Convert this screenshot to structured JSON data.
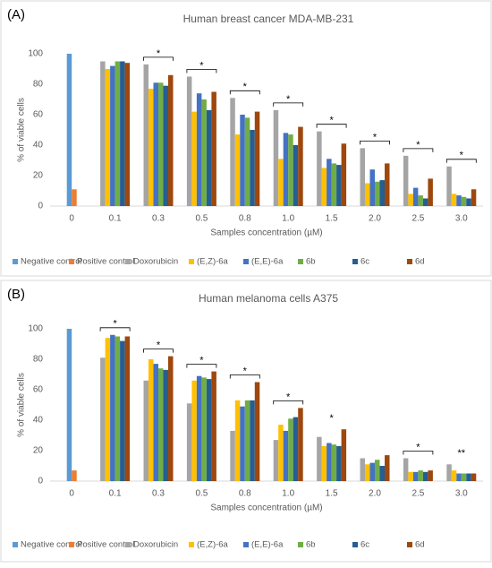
{
  "chart_data": [
    {
      "type": "bar",
      "panel_label": "(A)",
      "title": "Human breast cancer MDA-MB-231",
      "x_label": "Samples concentration (µM)",
      "y_label": "% of viable cells",
      "categories": [
        "0",
        "0.1",
        "0.3",
        "0.5",
        "0.8",
        "1.0",
        "1.5",
        "2.0",
        "2.5",
        "3.0"
      ],
      "series": [
        {
          "name": "Negative control",
          "color": "#5b9bd5",
          "values": [
            100,
            null,
            null,
            null,
            null,
            null,
            null,
            null,
            null,
            null
          ]
        },
        {
          "name": "Positive control",
          "color": "#ed7d31",
          "values": [
            11,
            null,
            null,
            null,
            null,
            null,
            null,
            null,
            null,
            null
          ]
        },
        {
          "name": "Doxorubicin",
          "color": "#a5a5a5",
          "values": [
            null,
            95,
            93,
            85,
            71,
            63,
            49,
            38,
            33,
            26
          ]
        },
        {
          "name": "(E,Z)-6a",
          "color": "#ffc000",
          "values": [
            null,
            90,
            77,
            62,
            47,
            31,
            25,
            15,
            8,
            8
          ]
        },
        {
          "name": "(E,E)-6a",
          "color": "#4472c4",
          "values": [
            null,
            92,
            81,
            74,
            60,
            48,
            31,
            24,
            12,
            7
          ]
        },
        {
          "name": "6b",
          "color": "#70ad47",
          "values": [
            null,
            95,
            81,
            70,
            58,
            47,
            28,
            16,
            7,
            6
          ]
        },
        {
          "name": "6c",
          "color": "#255e91",
          "values": [
            null,
            95,
            79,
            63,
            50,
            40,
            27,
            17,
            5,
            5
          ]
        },
        {
          "name": "6d",
          "color": "#9e480e",
          "values": [
            null,
            94,
            86,
            75,
            62,
            52,
            41,
            28,
            18,
            11
          ]
        }
      ],
      "annotations": [
        {
          "category": "0.3",
          "text": "*"
        },
        {
          "category": "0.5",
          "text": "*"
        },
        {
          "category": "0.8",
          "text": "*"
        },
        {
          "category": "1.0",
          "text": "*"
        },
        {
          "category": "1.5",
          "text": "*"
        },
        {
          "category": "2.0",
          "text": "*"
        },
        {
          "category": "2.5",
          "text": "*"
        },
        {
          "category": "3.0",
          "text": "*"
        }
      ],
      "ylim": [
        0,
        100
      ],
      "yticks": [
        0,
        20,
        40,
        60,
        80,
        100
      ],
      "grid": false
    },
    {
      "type": "bar",
      "panel_label": "(B)",
      "title": "Human melanoma cells A375",
      "x_label": "Samples concentration (µM)",
      "y_label": "% of viable cells",
      "categories": [
        "0",
        "0.1",
        "0.3",
        "0.5",
        "0.8",
        "1.0",
        "1.5",
        "2.0",
        "2.5",
        "3.0"
      ],
      "series": [
        {
          "name": "Negative control",
          "color": "#5b9bd5",
          "values": [
            100,
            null,
            null,
            null,
            null,
            null,
            null,
            null,
            null,
            null
          ]
        },
        {
          "name": "Positive control",
          "color": "#ed7d31",
          "values": [
            7,
            null,
            null,
            null,
            null,
            null,
            null,
            null,
            null,
            null
          ]
        },
        {
          "name": "Doxorubicin",
          "color": "#a5a5a5",
          "values": [
            null,
            81,
            66,
            51,
            33,
            27,
            29,
            15,
            15,
            11
          ]
        },
        {
          "name": "(E,Z)-6a",
          "color": "#ffc000",
          "values": [
            null,
            94,
            80,
            66,
            53,
            37,
            23,
            11,
            6,
            7
          ]
        },
        {
          "name": "(E,E)-6a",
          "color": "#4472c4",
          "values": [
            null,
            96,
            77,
            69,
            49,
            33,
            25,
            12,
            6,
            5
          ]
        },
        {
          "name": "6b",
          "color": "#70ad47",
          "values": [
            null,
            95,
            74,
            68,
            53,
            41,
            24,
            14,
            7,
            5
          ]
        },
        {
          "name": "6c",
          "color": "#255e91",
          "values": [
            null,
            92,
            73,
            67,
            53,
            42,
            23,
            10,
            6,
            5
          ]
        },
        {
          "name": "6d",
          "color": "#9e480e",
          "values": [
            null,
            95,
            82,
            72,
            65,
            48,
            34,
            17,
            7,
            5
          ]
        }
      ],
      "annotations": [
        {
          "category": "0.1",
          "text": "*"
        },
        {
          "category": "0.3",
          "text": "*"
        },
        {
          "category": "0.5",
          "text": "*"
        },
        {
          "category": "0.8",
          "text": "*"
        },
        {
          "category": "1.0",
          "text": "*"
        },
        {
          "category": "1.5",
          "text": "*"
        },
        {
          "category": "2.5",
          "text": "*"
        },
        {
          "category": "3.0",
          "text": "**"
        }
      ],
      "ylim": [
        0,
        100
      ],
      "yticks": [
        0,
        20,
        40,
        60,
        80,
        100
      ],
      "grid": false
    }
  ]
}
